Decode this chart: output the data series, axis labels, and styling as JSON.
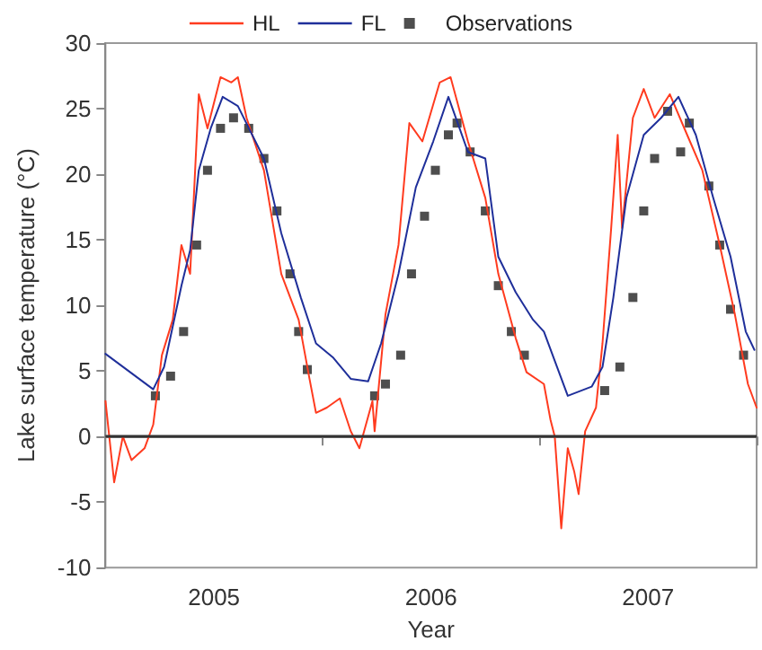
{
  "chart_data": {
    "type": "line",
    "xlabel": "Year",
    "ylabel": "Lake surface temperature (°C)",
    "xlim": [
      2005,
      2008
    ],
    "xticks": [
      {
        "value": 2005,
        "label": null
      },
      {
        "value": 2005.5,
        "label": "2005"
      },
      {
        "value": 2006,
        "label": null
      },
      {
        "value": 2006.5,
        "label": "2006"
      },
      {
        "value": 2007,
        "label": null
      },
      {
        "value": 2007.5,
        "label": "2007"
      },
      {
        "value": 2008,
        "label": null
      }
    ],
    "ylim": [
      -10,
      30
    ],
    "yticks": [
      -10,
      -5,
      0,
      5,
      10,
      15,
      20,
      25,
      30
    ],
    "grid": false,
    "legend": "top",
    "ref_lines": [
      {
        "axis": "y",
        "value": 0,
        "color": "#333333",
        "line_style": "solid"
      }
    ],
    "series": [
      {
        "name": "HL",
        "color": "#ff3b1f",
        "marker": "none",
        "line_style": "solid",
        "x": [
          2005,
          2005.04,
          2005.08,
          2005.12,
          2005.18,
          2005.22,
          2005.26,
          2005.31,
          2005.35,
          2005.39,
          2005.43,
          2005.47,
          2005.53,
          2005.58,
          2005.61,
          2005.65,
          2005.73,
          2005.81,
          2005.89,
          2005.94,
          2005.97,
          2006.02,
          2006.08,
          2006.13,
          2006.17,
          2006.23,
          2006.24,
          2006.29,
          2006.35,
          2006.4,
          2006.46,
          2006.54,
          2006.59,
          2006.67,
          2006.75,
          2006.81,
          2006.89,
          2006.94,
          2007.02,
          2007.05,
          2007.07,
          2007.1,
          2007.13,
          2007.16,
          2007.18,
          2007.21,
          2007.26,
          2007.29,
          2007.33,
          2007.36,
          2007.38,
          2007.43,
          2007.48,
          2007.53,
          2007.6,
          2007.68,
          2007.75,
          2007.83,
          2007.9,
          2007.96,
          2008
        ],
        "values": [
          2.7,
          -3.5,
          0,
          -1.8,
          -0.9,
          0.9,
          6.2,
          8.9,
          14.6,
          12.4,
          26.1,
          23.5,
          27.4,
          27,
          27.4,
          24.3,
          20.3,
          12.4,
          8.9,
          4.4,
          1.8,
          2.2,
          2.9,
          0.4,
          -0.9,
          2.7,
          0.4,
          9.3,
          14.6,
          23.9,
          22.5,
          27,
          27.4,
          22.5,
          18.2,
          12.4,
          7.5,
          4.9,
          4,
          1.3,
          0,
          -7,
          -0.9,
          -2.7,
          -4.4,
          0.4,
          2.2,
          7.1,
          15.9,
          23,
          15.9,
          24.3,
          26.5,
          24.3,
          26.1,
          23,
          20.3,
          14.6,
          9.3,
          4,
          2.2
        ]
      },
      {
        "name": "FL",
        "color": "#1f2f9a",
        "marker": "none",
        "line_style": "solid",
        "x": [
          2005,
          2005.22,
          2005.27,
          2005.35,
          2005.39,
          2005.43,
          2005.485,
          2005.54,
          2005.61,
          2005.73,
          2005.81,
          2005.9,
          2005.97,
          2006.05,
          2006.13,
          2006.21,
          2006.27,
          2006.35,
          2006.43,
          2006.51,
          2006.58,
          2006.67,
          2006.75,
          2006.81,
          2006.89,
          2006.97,
          2007.02,
          2007.13,
          2007.24,
          2007.29,
          2007.34,
          2007.4,
          2007.48,
          2007.56,
          2007.64,
          2007.72,
          2007.8,
          2007.88,
          2007.95,
          2007.99
        ],
        "values": [
          6.3,
          3.6,
          5.3,
          11.5,
          14.2,
          20.3,
          23.5,
          25.9,
          25.2,
          21.2,
          15.5,
          10.6,
          7.1,
          6,
          4.4,
          4.2,
          7.1,
          12.4,
          19,
          22.5,
          25.9,
          21.7,
          21.2,
          13.7,
          11,
          8.9,
          8,
          3.1,
          3.8,
          5.3,
          10.6,
          18.2,
          23,
          24.3,
          25.9,
          23,
          18.2,
          13.7,
          8,
          6.6
        ]
      },
      {
        "name": "Observations",
        "type": "scatter",
        "color": "#222222",
        "marker": "square",
        "x": [
          2005.23,
          2005.3,
          2005.36,
          2005.42,
          2005.47,
          2005.53,
          2005.59,
          2005.66,
          2005.73,
          2005.79,
          2005.85,
          2005.89,
          2005.93,
          2006.24,
          2006.29,
          2006.36,
          2006.41,
          2006.47,
          2006.52,
          2006.58,
          2006.62,
          2006.68,
          2006.75,
          2006.81,
          2006.87,
          2006.93,
          2007.3,
          2007.37,
          2007.43,
          2007.48,
          2007.53,
          2007.59,
          2007.65,
          2007.69,
          2007.78,
          2007.83,
          2007.88,
          2007.94
        ],
        "values": [
          3.1,
          4.6,
          8,
          14.6,
          20.3,
          23.5,
          24.3,
          23.5,
          21.2,
          17.2,
          12.4,
          8,
          5.1,
          3.1,
          4,
          6.2,
          12.4,
          16.8,
          20.3,
          23,
          23.9,
          21.7,
          17.2,
          11.5,
          8,
          6.2,
          3.5,
          5.3,
          10.6,
          17.2,
          21.2,
          24.8,
          21.7,
          23.9,
          19.1,
          14.6,
          9.7,
          6.2
        ]
      }
    ]
  }
}
